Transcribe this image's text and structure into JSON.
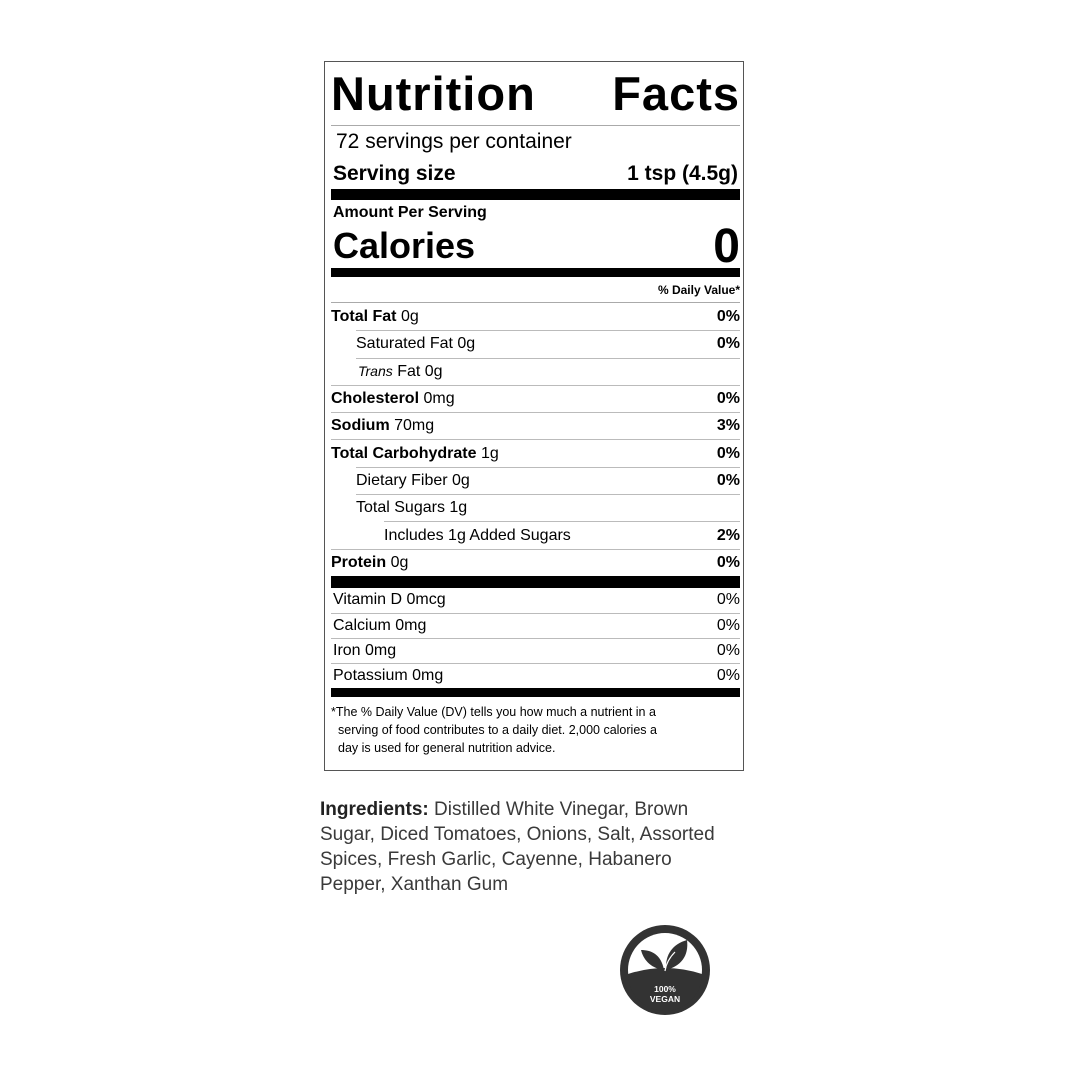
{
  "label": {
    "title_left": "Nutrition",
    "title_right": "Facts",
    "servings": "72 servings per container",
    "serving_size_label": "Serving size",
    "serving_size_value": "1 tsp (4.5g)",
    "amount_per_serving": "Amount Per Serving",
    "calories_label": "Calories",
    "calories_value": "0",
    "daily_value_header": "% Daily Value*",
    "nutrients": [
      {
        "name": "Total Fat",
        "amount": "0g",
        "dv": "0%",
        "level": 0
      },
      {
        "name": "Saturated Fat 0g",
        "amount": "",
        "dv": "0%",
        "level": 1
      },
      {
        "name": "Trans",
        "amount": "Fat 0g",
        "dv": "",
        "level": 1
      },
      {
        "name": "Cholesterol",
        "amount": "0mg",
        "dv": "0%",
        "level": 0
      },
      {
        "name": "Sodium",
        "amount": "70mg",
        "dv": "3%",
        "level": 0
      },
      {
        "name": "Total Carbohydrate",
        "amount": "1g",
        "dv": "0%",
        "level": 0
      },
      {
        "name": "Dietary Fiber 0g",
        "amount": "",
        "dv": "0%",
        "level": 1
      },
      {
        "name": "Total Sugars 1g",
        "amount": "",
        "dv": "",
        "level": 1
      },
      {
        "name": "Includes 1g Added Sugars",
        "amount": "",
        "dv": "2%",
        "level": 2
      },
      {
        "name": "Protein",
        "amount": "0g",
        "dv": "0%",
        "level": 0
      }
    ],
    "vitamins": [
      {
        "name": "Vitamin D 0mcg",
        "dv": "0%"
      },
      {
        "name": "Calcium 0mg",
        "dv": "0%"
      },
      {
        "name": "Iron 0mg",
        "dv": "0%"
      },
      {
        "name": "Potassium 0mg",
        "dv": "0%"
      }
    ],
    "footnote": [
      "*The % Daily Value (DV) tells you how much a nutrient in a",
      "serving of food contributes to a daily diet. 2,000 calories a",
      "day is used for general nutrition advice."
    ]
  },
  "ingredients": {
    "label": "Ingredients:",
    "text": "Distilled White Vinegar, Brown Sugar, Diced Tomatoes, Onions, Salt, Assorted Spices, Fresh Garlic, Cayenne, Habanero Pepper, Xanthan Gum"
  },
  "badge": {
    "line1": "100%",
    "line2": "VEGAN",
    "icon": "vegan-leaf-icon",
    "color": "#333333"
  }
}
